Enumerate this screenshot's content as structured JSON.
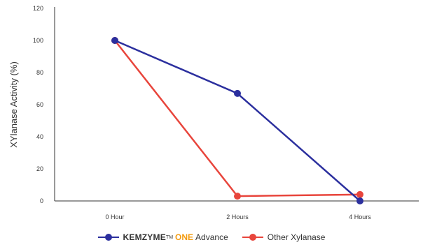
{
  "chart_data": {
    "type": "line",
    "categories": [
      "0 Hour",
      "2 Hours",
      "4 Hours"
    ],
    "series": [
      {
        "name": "KEMZYME™ ONE Advance",
        "name_parts": {
          "brand": "KEMZYME",
          "tm": "TM",
          "accent": "ONE",
          "rest": "Advance"
        },
        "values": [
          100,
          67,
          0
        ],
        "color": "#2b2f9e"
      },
      {
        "name": "Other Xylanase",
        "values": [
          100,
          3,
          4
        ],
        "color": "#e8453c"
      }
    ],
    "title": "",
    "xlabel": "",
    "ylabel": "XYlanase Activity (%)",
    "ylim": [
      0,
      120
    ],
    "yticks": [
      0,
      20,
      40,
      60,
      80,
      100,
      120
    ],
    "grid": false,
    "legend_position": "bottom",
    "accent_color": "#f39c12"
  }
}
